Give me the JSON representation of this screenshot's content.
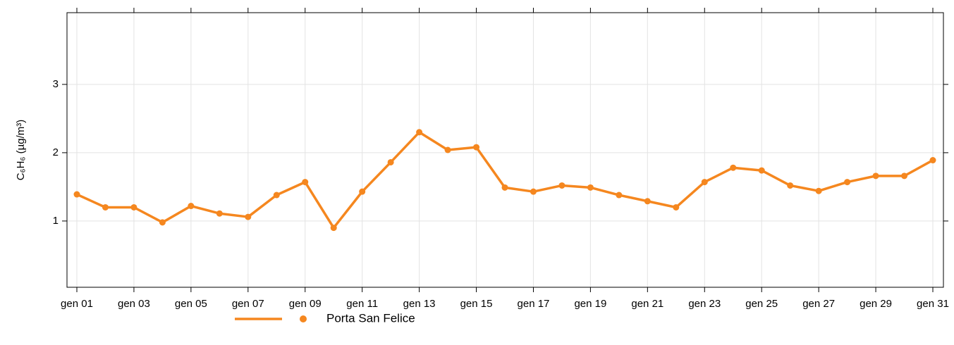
{
  "chart_data": {
    "type": "line",
    "y_label": "C₆H₆ (µg/m³)",
    "categories": [
      "gen 01",
      null,
      "gen 03",
      null,
      "gen 05",
      null,
      "gen 07",
      null,
      "gen 09",
      null,
      "gen 11",
      null,
      "gen 13",
      null,
      "gen 15",
      null,
      "gen 17",
      null,
      "gen 19",
      null,
      "gen 21",
      null,
      "gen 23",
      null,
      "gen 25",
      null,
      "gen 27",
      null,
      "gen 29",
      null,
      "gen 31"
    ],
    "series": [
      {
        "name": "Porta San Felice",
        "color": "#f5871f",
        "values": [
          1.39,
          1.2,
          1.2,
          0.98,
          1.22,
          1.11,
          1.06,
          1.38,
          1.57,
          0.9,
          1.43,
          1.86,
          2.3,
          2.04,
          2.08,
          1.49,
          1.43,
          1.52,
          1.49,
          1.38,
          1.29,
          1.2,
          1.57,
          1.78,
          1.74,
          1.52,
          1.44,
          1.57,
          1.66,
          1.66,
          1.89
        ]
      }
    ],
    "ylim": [
      0.03,
      4.05
    ],
    "yticks": [
      1,
      2,
      3
    ],
    "grid": true,
    "legend": "bottom"
  }
}
